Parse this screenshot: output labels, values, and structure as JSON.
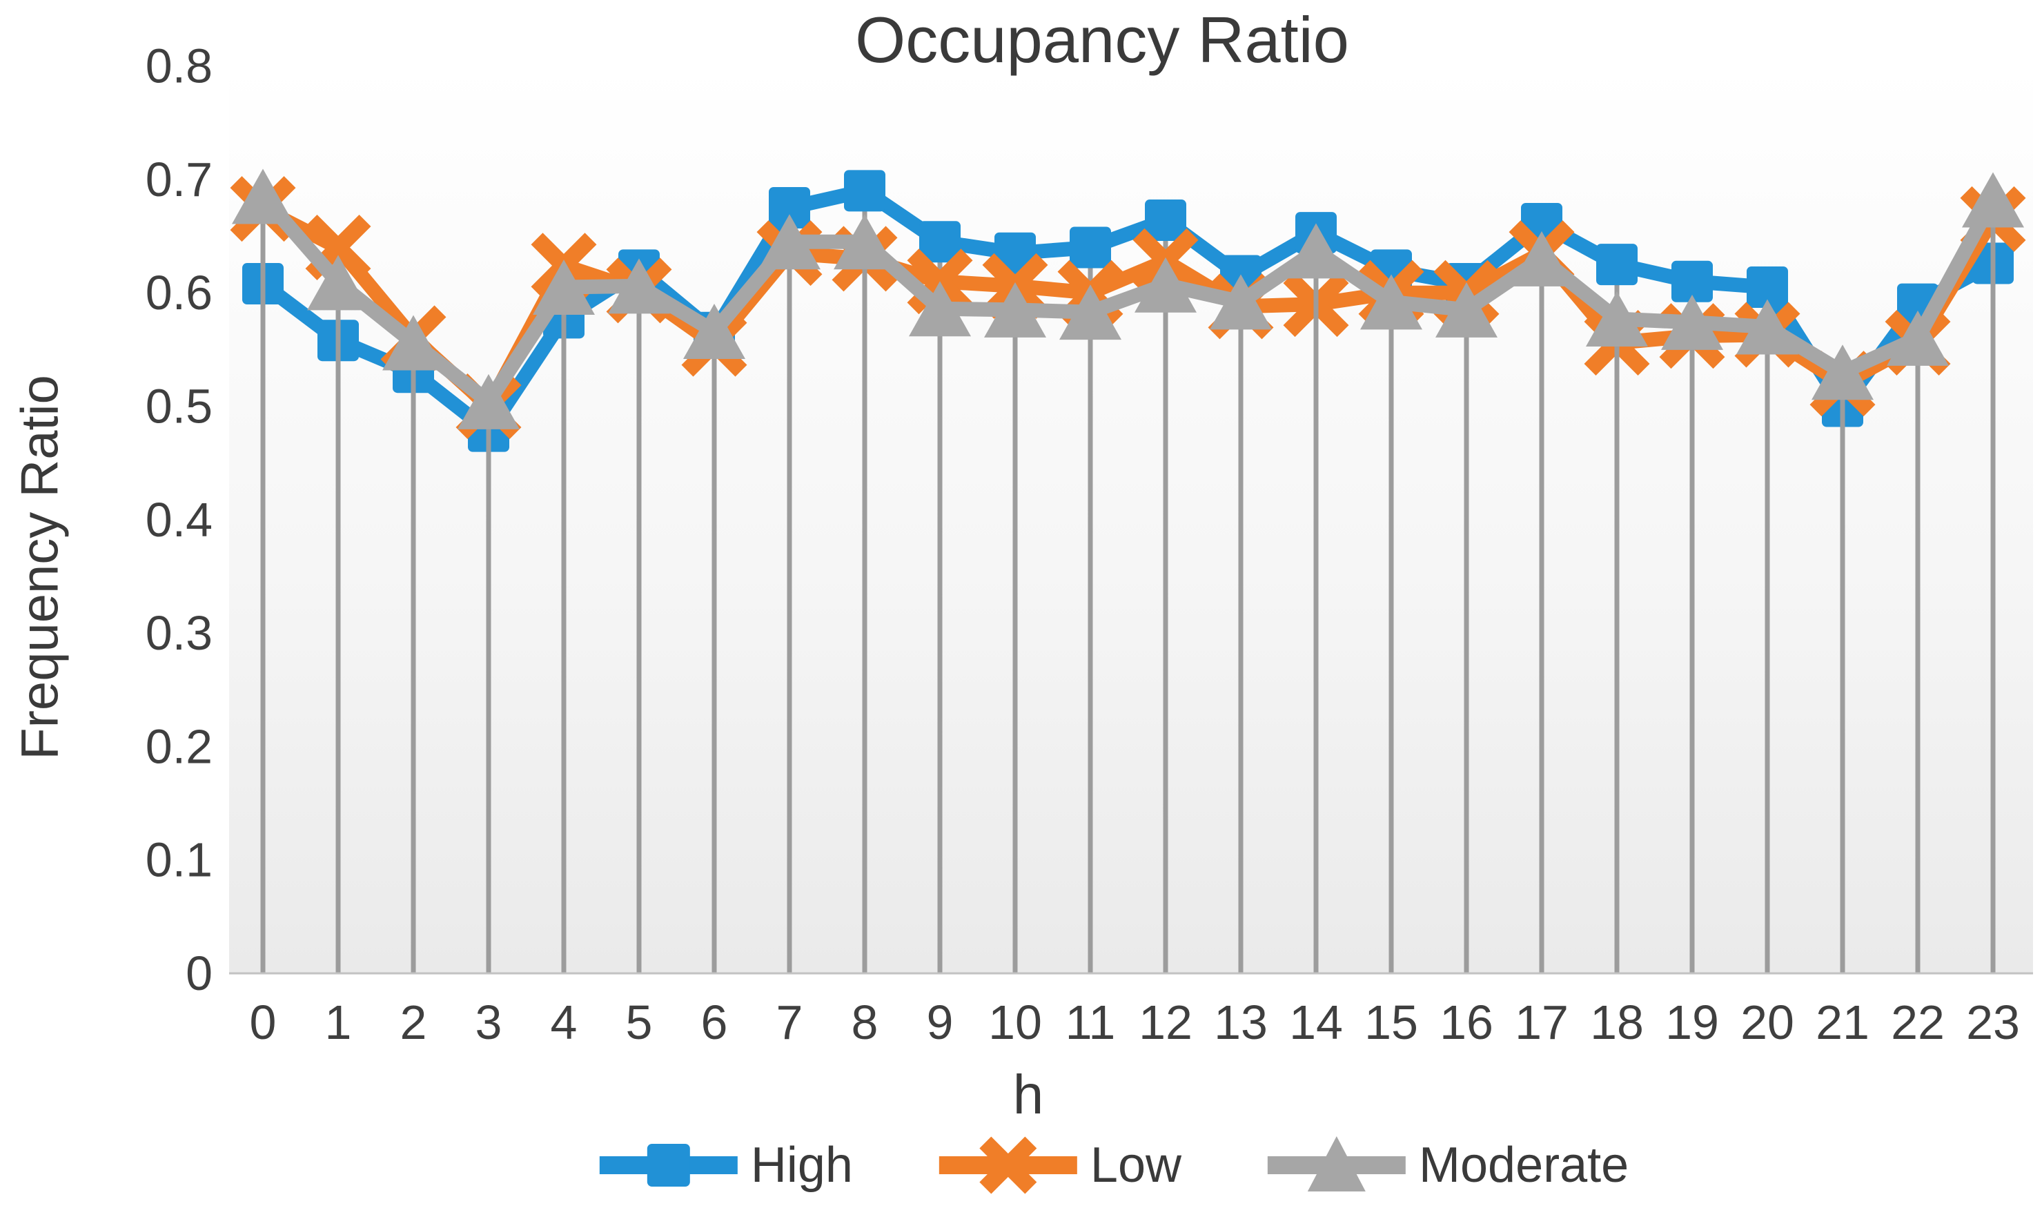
{
  "title": "Occupancy Ratio",
  "chart_data": {
    "type": "line",
    "title": "Occupancy Ratio",
    "xlabel": "h",
    "ylabel": "Frequency Ratio",
    "x": [
      0,
      1,
      2,
      3,
      4,
      5,
      6,
      7,
      8,
      9,
      10,
      11,
      12,
      13,
      14,
      15,
      16,
      17,
      18,
      19,
      20,
      21,
      22,
      23
    ],
    "ylim": [
      0,
      0.8
    ],
    "ytick_step": 0.1,
    "ytick_labels": [
      "0",
      "0.1",
      "0.2",
      "0.3",
      "0.4",
      "0.5",
      "0.6",
      "0.7",
      "0.8"
    ],
    "grid": "vertical-droplines",
    "legend_position": "bottom",
    "plot_background": "vertical gradient white to light gray",
    "series": [
      {
        "name": "High",
        "marker": "square",
        "color": "#2191D6",
        "values": [
          0.608,
          0.558,
          0.53,
          0.478,
          0.578,
          0.62,
          0.565,
          0.675,
          0.69,
          0.645,
          0.635,
          0.64,
          0.664,
          0.615,
          0.653,
          0.62,
          0.608,
          0.661,
          0.625,
          0.61,
          0.605,
          0.5,
          0.59,
          0.626
        ]
      },
      {
        "name": "Low",
        "marker": "x",
        "color": "#F07E28",
        "values": [
          0.674,
          0.64,
          0.56,
          0.5,
          0.624,
          0.602,
          0.555,
          0.635,
          0.63,
          0.61,
          0.606,
          0.6,
          0.628,
          0.588,
          0.59,
          0.6,
          0.6,
          0.635,
          0.556,
          0.562,
          0.563,
          0.52,
          0.556,
          0.665
        ]
      },
      {
        "name": "Moderate",
        "marker": "triangle",
        "color": "#A6A6A6",
        "values": [
          0.685,
          0.609,
          0.556,
          0.504,
          0.605,
          0.606,
          0.566,
          0.645,
          0.645,
          0.586,
          0.585,
          0.583,
          0.607,
          0.592,
          0.637,
          0.592,
          0.585,
          0.63,
          0.577,
          0.574,
          0.57,
          0.53,
          0.56,
          0.682
        ]
      }
    ],
    "colors": {
      "dropline": "#9C9C9C",
      "baseline": "#C2C2C2",
      "axis_text": "#3f3f3f",
      "plot_bg_top": "#FFFFFF",
      "plot_bg_bottom": "#EAEAEA"
    }
  }
}
